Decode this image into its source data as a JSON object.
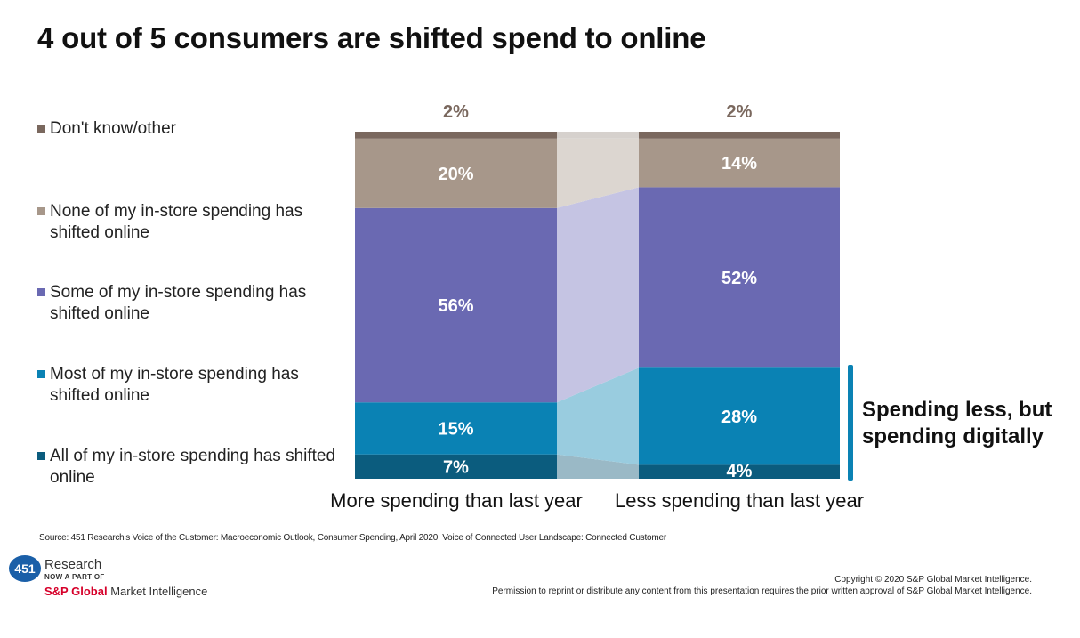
{
  "title": "4 out of 5 consumers are shifted spend to online",
  "legend": [
    {
      "label": "Don't know/other",
      "color": "#7a685e"
    },
    {
      "label": "None of my in-store spending has shifted online",
      "color": "#a7978a"
    },
    {
      "label": "Some of my in-store spending has shifted online",
      "color": "#6a69b2"
    },
    {
      "label": "Most of my in-store spending has shifted online",
      "color": "#0a82b4"
    },
    {
      "label": "All of my in-store spending has shifted online",
      "color": "#0b5c7e"
    }
  ],
  "chart_data": {
    "type": "bar",
    "stacked": true,
    "categories": [
      "More spending than last year",
      "Less spending than last year"
    ],
    "series": [
      {
        "name": "All of my in-store spending has shifted online",
        "values": [
          7,
          4
        ],
        "labels": [
          "7%",
          "4%"
        ],
        "color": "#0b5c7e",
        "connector_color": "#9ab9c6"
      },
      {
        "name": "Most of my in-store spending has shifted online",
        "values": [
          15,
          28
        ],
        "labels": [
          "15%",
          "28%"
        ],
        "color": "#0a82b4",
        "connector_color": "#99ccdf"
      },
      {
        "name": "Some of my in-store spending has shifted online",
        "values": [
          56,
          52
        ],
        "labels": [
          "56%",
          "52%"
        ],
        "color": "#6a69b2",
        "connector_color": "#c5c4e3"
      },
      {
        "name": "None of my in-store spending has shifted online",
        "values": [
          20,
          14
        ],
        "labels": [
          "20%",
          "14%"
        ],
        "color": "#a7978a",
        "connector_color": "#dcd6d0"
      },
      {
        "name": "Don't know/other",
        "values": [
          2,
          2
        ],
        "labels": [
          "2%",
          "2%"
        ],
        "color": "#7a685e",
        "connector_color": "#d6d1cd"
      }
    ],
    "total": 100,
    "legend_position": "left"
  },
  "callout": {
    "line1": "Spending less, but",
    "line2": "spending digitally",
    "bracket_color": "#0a82b4"
  },
  "source": "Source: 451 Research's Voice of the Customer: Macroeconomic Outlook, Consumer Spending, April 2020; Voice of Connected User Landscape: Connected Customer",
  "logo": {
    "number": "451",
    "research": "Research",
    "tagline": "NOW A PART OF",
    "company": "S&P Global",
    "division": "Market Intelligence"
  },
  "copyright": {
    "line1": "Copyright © 2020 S&P Global Market Intelligence.",
    "line2": "Permission to reprint or distribute any content from this presentation requires the prior written approval of S&P Global Market Intelligence."
  }
}
